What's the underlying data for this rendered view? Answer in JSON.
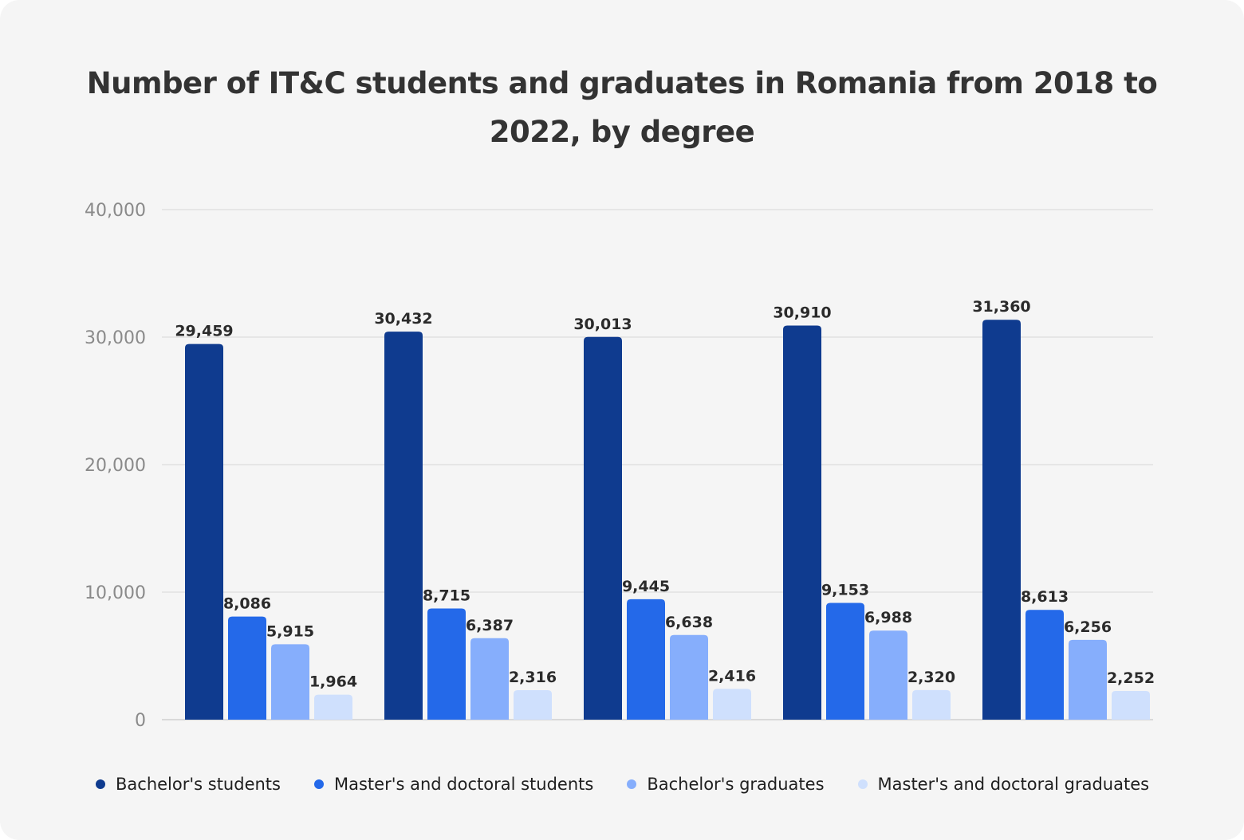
{
  "chart_data": {
    "type": "bar",
    "title": "Number of IT&C students and graduates in Romania from 2018 to 2022, by degree",
    "xlabel": "",
    "ylabel": "",
    "ylim": [
      0,
      40000
    ],
    "yticks": [
      "0",
      "10,000",
      "20,000",
      "30,000",
      "40,000"
    ],
    "grid": true,
    "legend_position": "bottom",
    "categories": [
      "",
      "",
      "",
      "",
      ""
    ],
    "series": [
      {
        "name": "Bachelor's students",
        "color": "#0f3b8f",
        "values": [
          29459,
          30432,
          30013,
          30910,
          31360
        ],
        "labels": [
          "29,459",
          "30,432",
          "30,013",
          "30,910",
          "31,360"
        ]
      },
      {
        "name": "Master's and doctoral students",
        "color": "#2469e9",
        "values": [
          8086,
          8715,
          9445,
          9153,
          8613
        ],
        "labels": [
          "8,086",
          "8,715",
          "9,445",
          "9,153",
          "8,613"
        ]
      },
      {
        "name": "Bachelor's graduates",
        "color": "#86aefc",
        "values": [
          5915,
          6387,
          6638,
          6988,
          6256
        ],
        "labels": [
          "5,915",
          "6,387",
          "6,638",
          "6,988",
          "6,256"
        ]
      },
      {
        "name": "Master's and doctoral graduates",
        "color": "#cfe0fd",
        "values": [
          1964,
          2316,
          2416,
          2320,
          2252
        ],
        "labels": [
          "1,964",
          "2,316",
          "2,416",
          "2,320",
          "2,252"
        ]
      }
    ]
  }
}
